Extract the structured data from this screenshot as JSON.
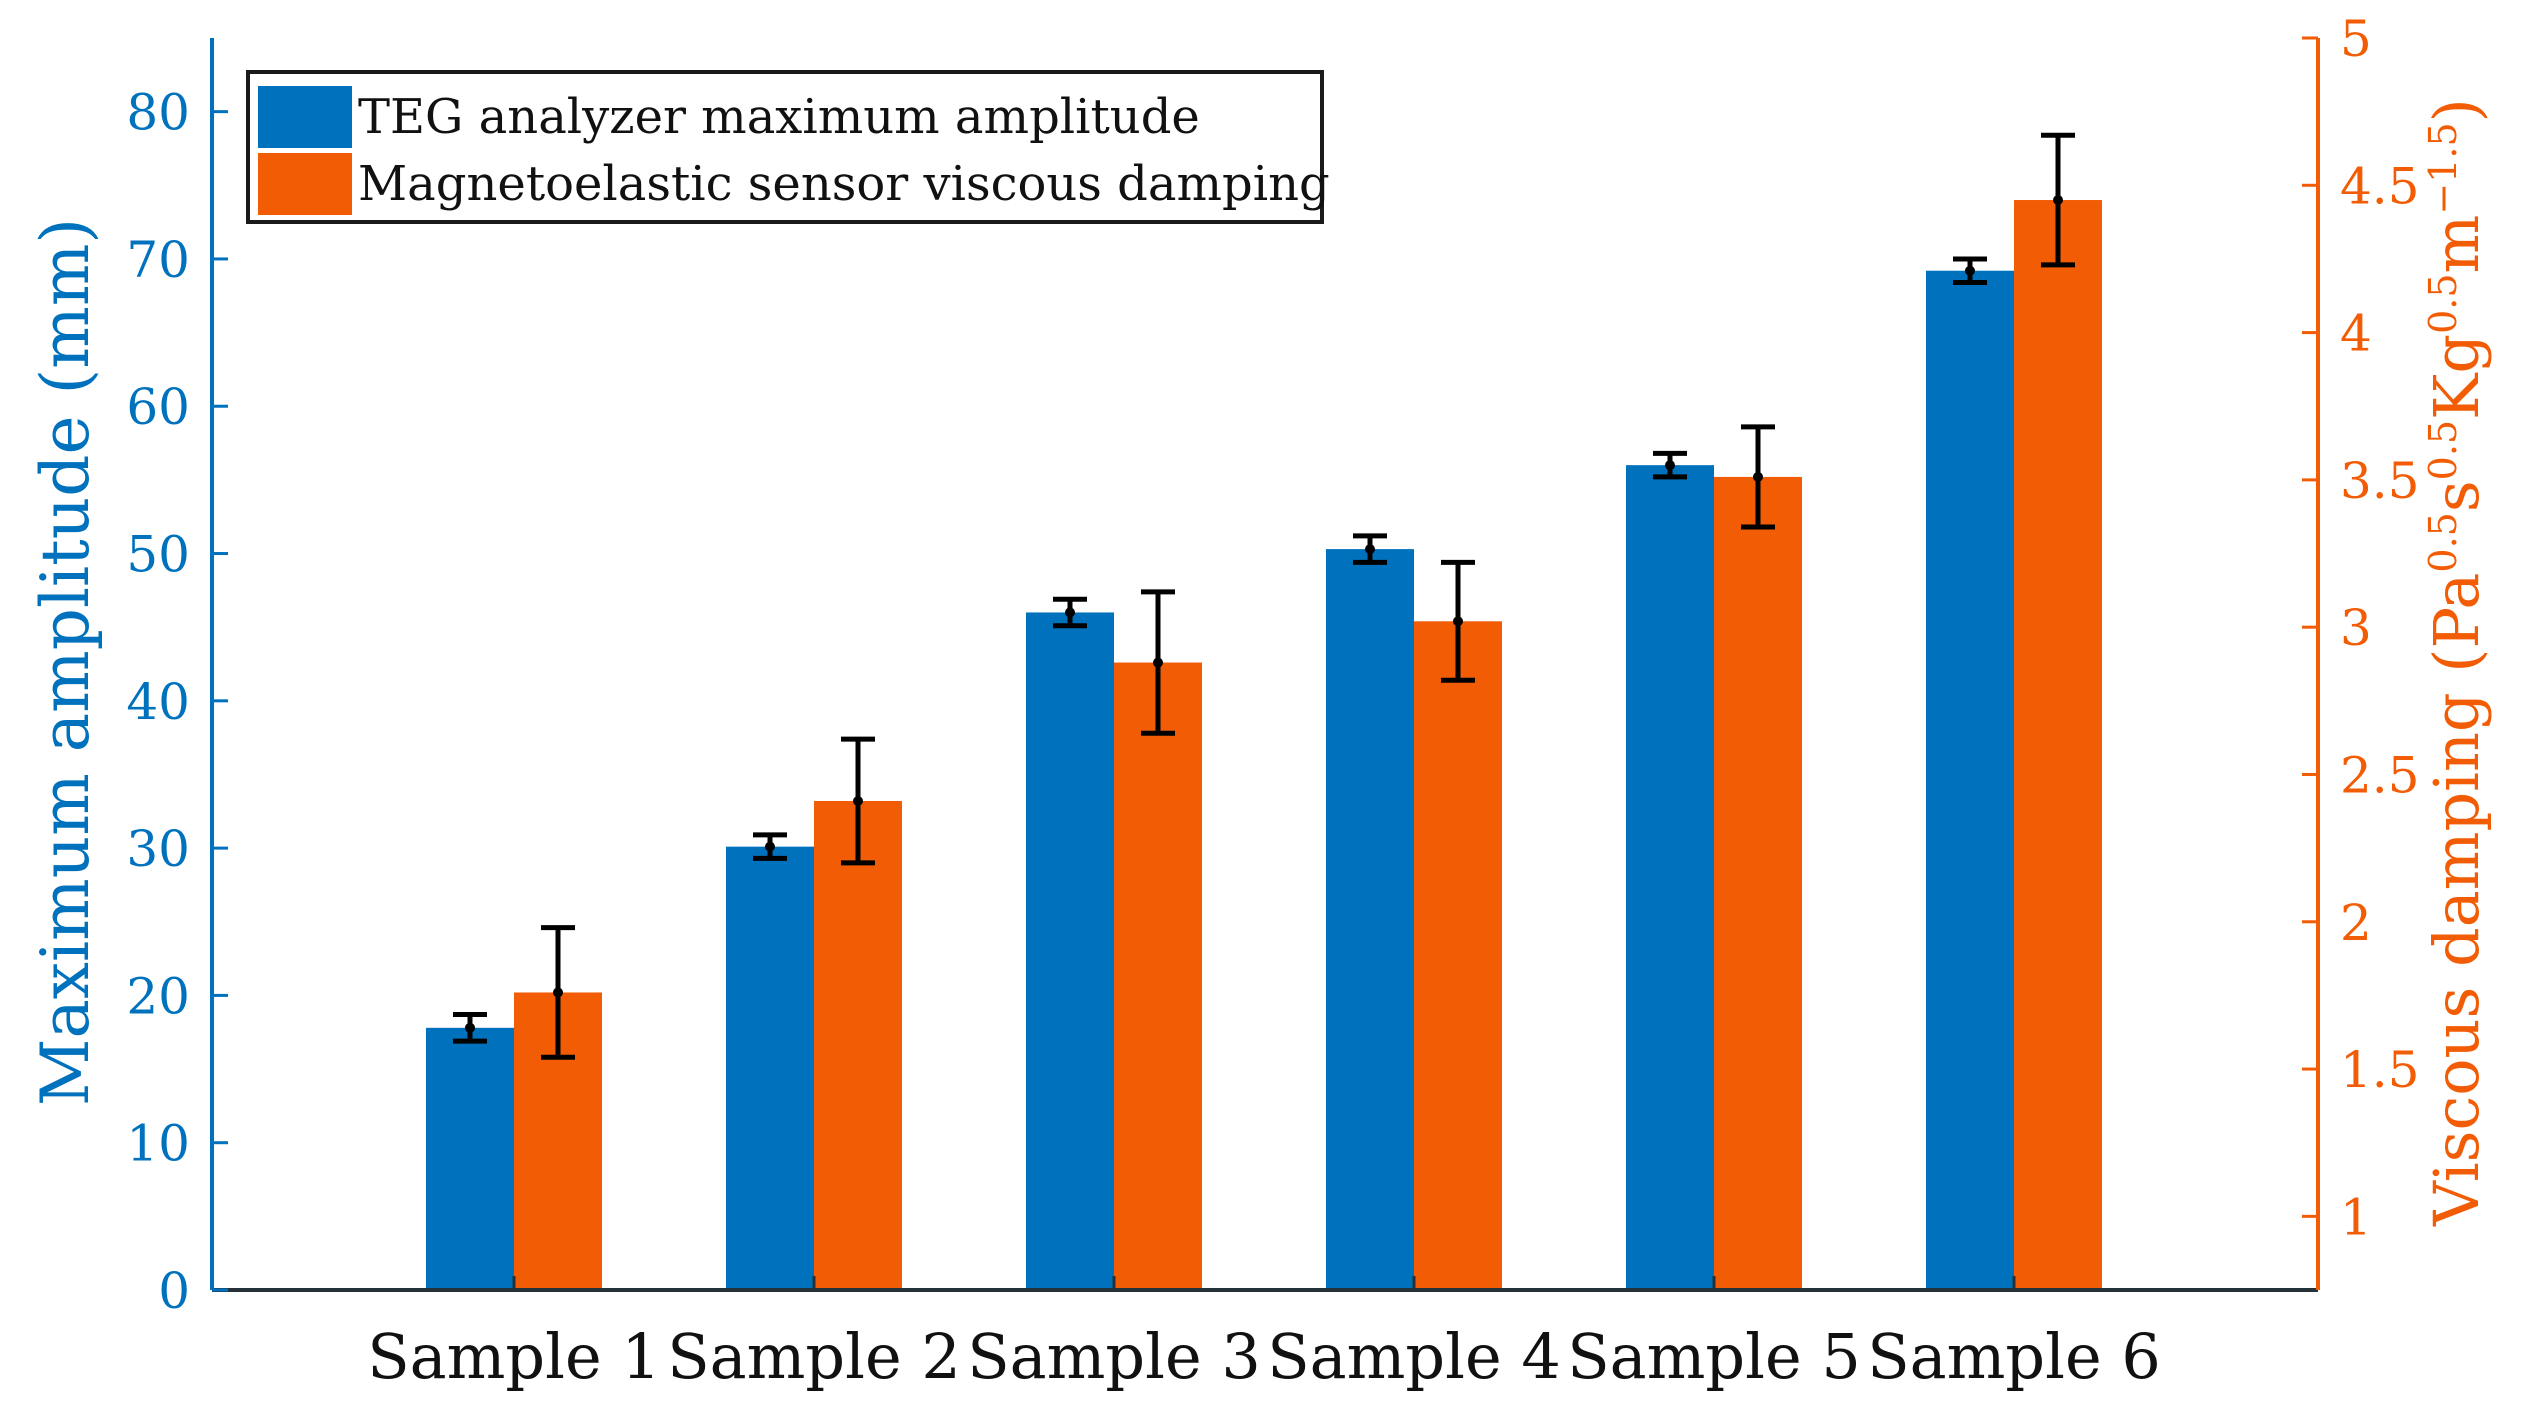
{
  "chart_data": {
    "type": "bar",
    "categories": [
      "Sample 1",
      "Sample 2",
      "Sample 3",
      "Sample 4",
      "Sample 5",
      "Sample 6"
    ],
    "series": [
      {
        "name": "TEG analyzer maximum amplitude",
        "axis": "left",
        "color": "#0072BD",
        "values": [
          17.8,
          30.1,
          46.0,
          50.3,
          56.0,
          69.2
        ],
        "errors": [
          0.9,
          0.8,
          0.9,
          0.9,
          0.8,
          0.8
        ]
      },
      {
        "name": "Magnetoelastic sensor viscous damping",
        "axis": "right",
        "color": "#F25C05",
        "values": [
          1.76,
          2.41,
          2.88,
          3.02,
          3.51,
          4.45
        ],
        "errors": [
          0.22,
          0.21,
          0.24,
          0.2,
          0.17,
          0.22
        ]
      }
    ],
    "y_left": {
      "label": "Maximum amplitude (mm)",
      "lim": [
        0,
        85
      ],
      "ticks": [
        0,
        10,
        20,
        30,
        40,
        50,
        60,
        70,
        80
      ],
      "tick_labels": [
        "0",
        "10",
        "20",
        "30",
        "40",
        "50",
        "60",
        "70",
        "80"
      ],
      "color": "#0072BD"
    },
    "y_right": {
      "label_parts": [
        {
          "text": "Viscous damping (Pa",
          "sup": false
        },
        {
          "text": "0.5",
          "sup": true
        },
        {
          "text": "s",
          "sup": false
        },
        {
          "text": "0.5",
          "sup": true
        },
        {
          "text": "Kg",
          "sup": false
        },
        {
          "text": "0.5",
          "sup": true
        },
        {
          "text": "m",
          "sup": false
        },
        {
          "text": "−1.5",
          "sup": true
        },
        {
          "text": ")",
          "sup": false
        }
      ],
      "lim": [
        0.75,
        5
      ],
      "ticks": [
        1,
        1.5,
        2,
        2.5,
        3,
        3.5,
        4,
        4.5,
        5
      ],
      "tick_labels": [
        "1",
        "1.5",
        "2",
        "2.5",
        "3",
        "3.5",
        "4",
        "4.5",
        "5"
      ],
      "color": "#F25C05"
    },
    "legend": {
      "position": "top-left",
      "entries": [
        "TEG analyzer maximum amplitude",
        "Magnetoelastic sensor viscous damping"
      ]
    },
    "grid": false,
    "title": ""
  }
}
